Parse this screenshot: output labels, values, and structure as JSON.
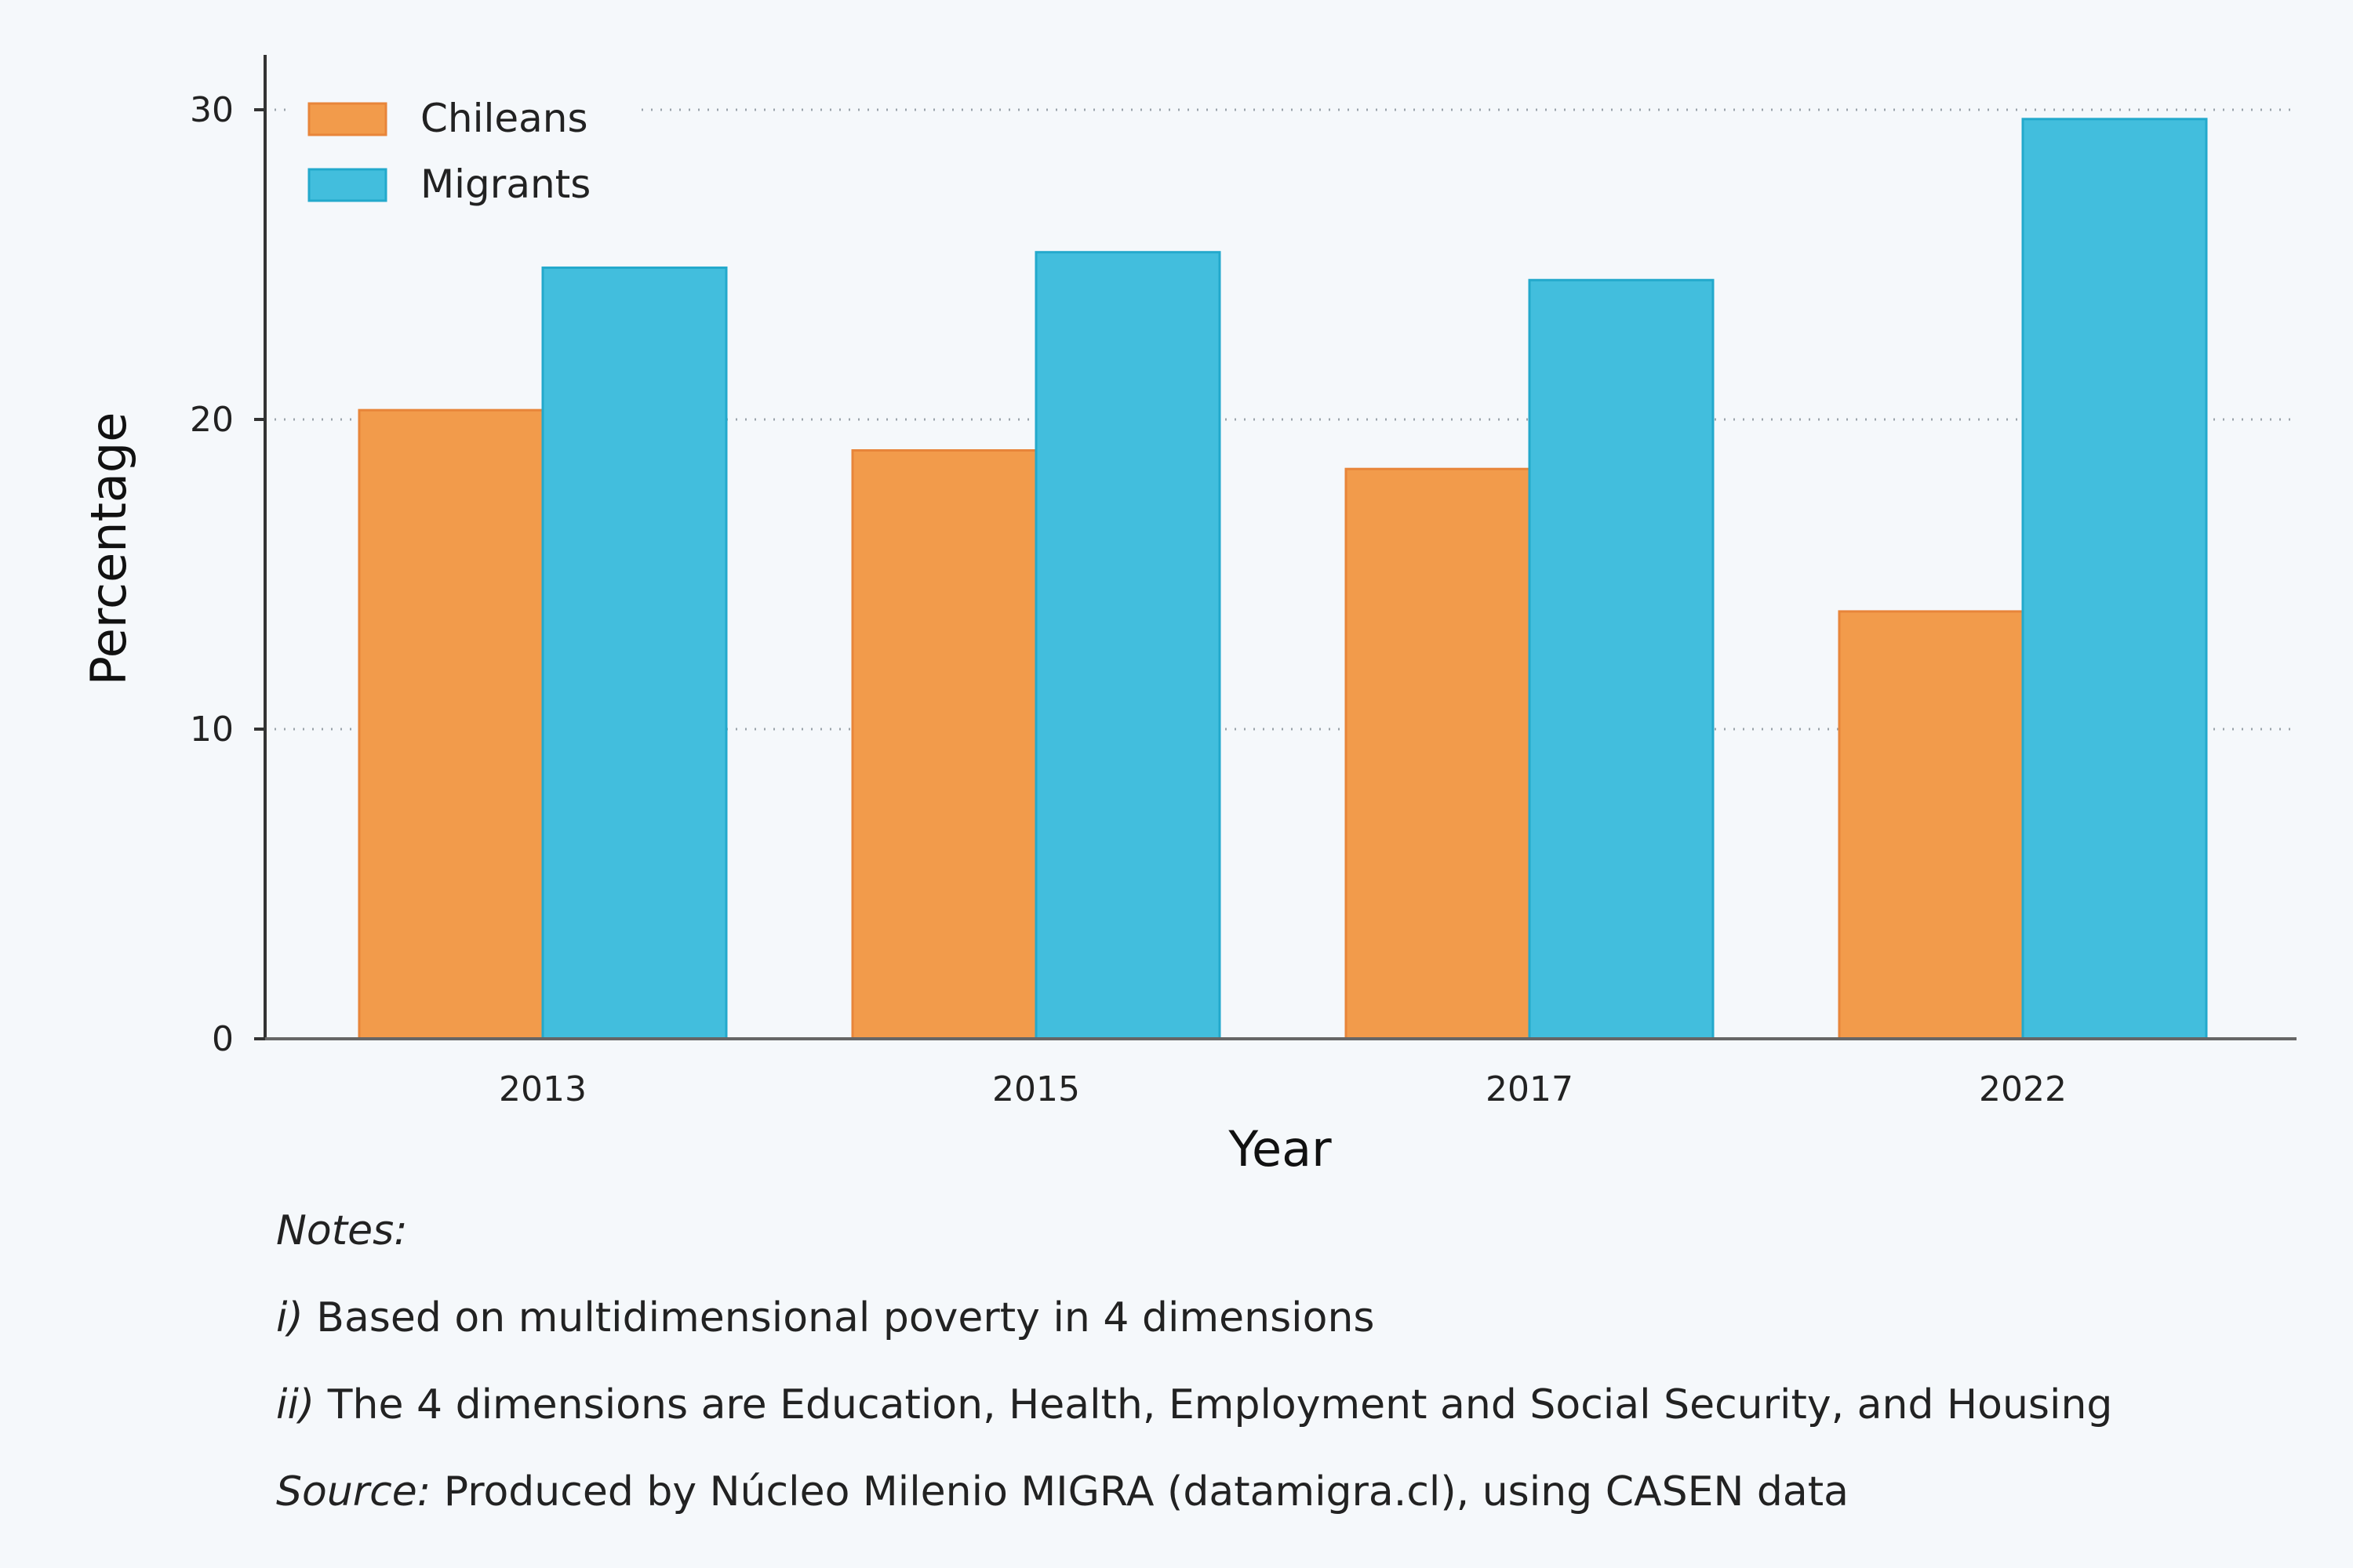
{
  "chart_data": {
    "type": "bar",
    "categories": [
      "2013",
      "2015",
      "2017",
      "2022"
    ],
    "series": [
      {
        "name": "Chileans",
        "values": [
          20.3,
          19.0,
          18.4,
          13.8
        ],
        "color": "#f29b4b",
        "edge": "#e8853a"
      },
      {
        "name": "Migrants",
        "values": [
          24.9,
          25.4,
          24.5,
          29.7
        ],
        "color": "#42bedd",
        "edge": "#23a9cc"
      }
    ],
    "xlabel": "Year",
    "ylabel": "Percentage",
    "ylim": [
      0,
      30
    ],
    "yticks": [
      0,
      10,
      20,
      30
    ],
    "grid": "horizontal dotted",
    "legend_position": "top-left"
  },
  "notes": {
    "heading": "Notes:",
    "line1_prefix": "i)",
    "line1_text": " Based on multidimensional poverty in 4 dimensions",
    "line2_prefix": "ii)",
    "line2_text": " The 4 dimensions are Education, Health, Employment and Social Security, and Housing",
    "source_prefix": "Source:",
    "source_text": " Produced by Núcleo Milenio MIGRA (datamigra.cl), using CASEN data"
  }
}
